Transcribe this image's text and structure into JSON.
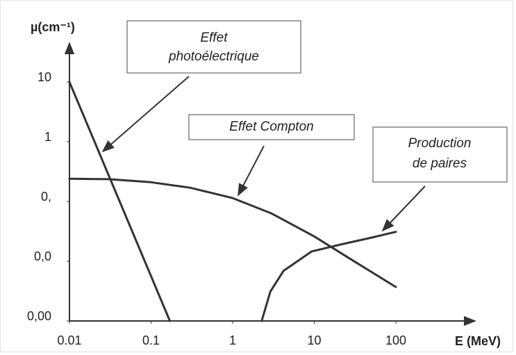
{
  "chart_data": {
    "type": "line",
    "x_label": "E (MeV)",
    "y_label": "µ(cm⁻¹)",
    "log_x": true,
    "log_y": true,
    "xlim": [
      0.01,
      100
    ],
    "xticks": [
      0.01,
      0.1,
      1,
      10,
      100
    ],
    "ylim": [
      0.001,
      10
    ],
    "yticks": [
      {
        "value": 0.001,
        "label": "0,00"
      },
      {
        "value": 0.01,
        "label": "0,0"
      },
      {
        "value": 0.1,
        "label": "0,"
      },
      1,
      10
    ],
    "color": "#333333",
    "series": [
      {
        "x": [
          0.01,
          0.17
        ],
        "values": [
          10,
          0.001
        ]
      },
      {
        "x": [
          0.01,
          0.03,
          0.1,
          0.3,
          1,
          3,
          10,
          30,
          100
        ],
        "values": [
          0.24,
          0.236,
          0.21,
          0.17,
          0.114,
          0.063,
          0.026,
          0.0102,
          0.0037
        ]
      },
      {
        "x": [
          2.27,
          2.9,
          4.2,
          9.3,
          21,
          50,
          100
        ],
        "values": [
          0.001,
          0.0031,
          0.0069,
          0.0146,
          0.019,
          0.0248,
          0.031
        ]
      }
    ],
    "annotations": [
      {
        "lines": [
          "Effet",
          "photoélectrique"
        ]
      },
      {
        "lines": [
          "Effet Compton"
        ]
      },
      {
        "lines": [
          "Production",
          "de paires"
        ]
      }
    ]
  }
}
